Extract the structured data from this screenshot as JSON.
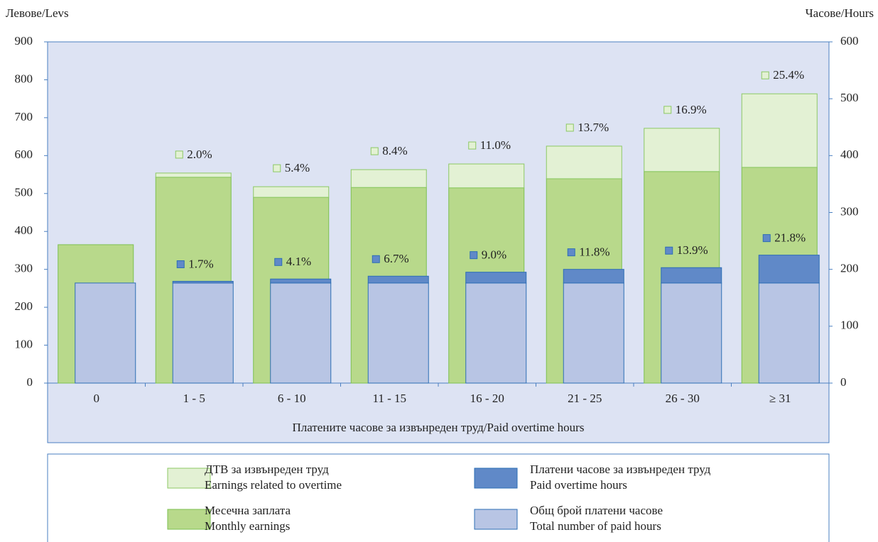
{
  "chart_data": {
    "type": "stacked_bar_dual_axis",
    "y_axis_title": "Левове/Levs",
    "y2_axis_title": "Часове/Hours",
    "x_axis_title": "Платените часове за извънреден труд/Paid overtime hours",
    "categories": [
      "0",
      "1 - 5",
      "6 - 10",
      "11 - 15",
      "16 - 20",
      "21 - 25",
      "26 - 30",
      "≥ 31"
    ],
    "ylim": [
      0,
      900
    ],
    "yticks": [
      0,
      100,
      200,
      300,
      400,
      500,
      600,
      700,
      800,
      900
    ],
    "y2lim": [
      0,
      600
    ],
    "y2ticks": [
      0,
      100,
      200,
      300,
      400,
      500,
      600
    ],
    "series": [
      {
        "name": "Месечна заплата",
        "name_en": "Monthly earnings",
        "color": "#b8d98b",
        "stroke": "#7dc050",
        "axis": "y",
        "stack": "earnings",
        "values": [
          365,
          543,
          490,
          516,
          515,
          539,
          558,
          569
        ]
      },
      {
        "name": "ДТВ за извънреден труд",
        "name_en": "Earnings related to overtime",
        "color": "#e3f1d4",
        "stroke": "#8cc864",
        "axis": "y",
        "stack": "earnings",
        "values": [
          0,
          11,
          28,
          47,
          63,
          86,
          114,
          194
        ],
        "share": [
          null,
          2.0,
          5.4,
          8.4,
          11.0,
          13.7,
          16.9,
          25.4
        ],
        "share_labels": [
          null,
          "2.0%",
          "5.4%",
          "8.4%",
          "11.0%",
          "13.7%",
          "16.9%",
          "25.4%"
        ]
      },
      {
        "name": "Общ брой платени часове",
        "name_en": "Total number of paid hours",
        "color": "#b8c5e4",
        "stroke": "#2d6eb5",
        "axis": "y2",
        "stack": "hours",
        "values": [
          176,
          176,
          176,
          176,
          176,
          176,
          176,
          176
        ]
      },
      {
        "name": "Платени часове за извънреден труд",
        "name_en": "Paid overtime hours",
        "color": "#6089c8",
        "stroke": "#2d6eb5",
        "axis": "y2",
        "stack": "hours",
        "values": [
          0,
          3,
          7,
          12,
          19,
          24,
          27,
          49
        ],
        "share": [
          null,
          1.7,
          4.1,
          6.7,
          9.0,
          11.8,
          13.9,
          21.8
        ],
        "share_labels": [
          null,
          "1.7%",
          "4.1%",
          "6.7%",
          "9.0%",
          "11.8%",
          "13.9%",
          "21.8%"
        ]
      }
    ]
  }
}
